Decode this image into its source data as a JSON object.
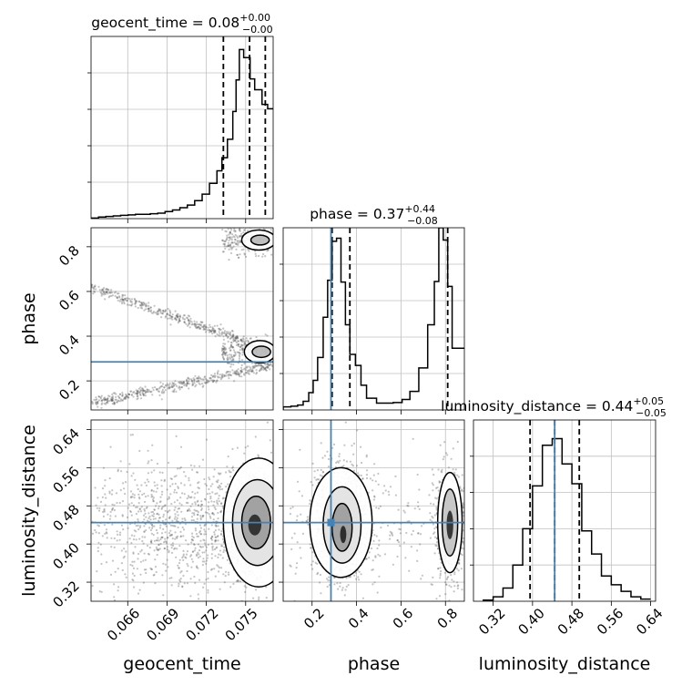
{
  "chart_data": {
    "type": "corner",
    "parameters": [
      "geocent_time",
      "phase",
      "luminosity_distance"
    ],
    "injection": {
      "phase": 0.285,
      "luminosity_distance": 0.445
    },
    "colors": {
      "truth": "#4682b4",
      "hist": "#000000",
      "grid": "#c0c0c0",
      "points": "#555555"
    },
    "diagonal": [
      {
        "parameter": "geocent_time",
        "title": "geocent_time = 0.08",
        "title_sup": "+0.00",
        "title_sub": "−0.00",
        "range": [
          0.0632,
          0.0771
        ],
        "bin_edges": [
          0.0632,
          0.06377,
          0.06433,
          0.0649,
          0.06546,
          0.06603,
          0.06659,
          0.06716,
          0.06772,
          0.06829,
          0.06885,
          0.06942,
          0.06998,
          0.07055,
          0.07111,
          0.07168,
          0.07224,
          0.07281,
          0.07319,
          0.07361,
          0.07402,
          0.07427,
          0.07452,
          0.07485,
          0.07534,
          0.07569,
          0.07625,
          0.07668,
          0.0771
        ],
        "counts": [
          1,
          3,
          4,
          5,
          6,
          7,
          8,
          8,
          9,
          10,
          13,
          16,
          20,
          25,
          33,
          45,
          65,
          88,
          112,
          146,
          197,
          255,
          311,
          296,
          257,
          237,
          210,
          202
        ],
        "ylim": [
          0,
          335
        ],
        "quantiles": [
          0.0733,
          0.0753,
          0.0765
        ],
        "xticks": [
          0.066,
          0.069,
          0.072,
          0.075
        ],
        "xticklabels": [
          "0.066",
          "0.069",
          "0.072",
          "0.075"
        ],
        "xlabel": "geocent_time"
      },
      {
        "parameter": "phase",
        "title": "phase = 0.37",
        "title_sup": "+0.44",
        "title_sub": "−0.08",
        "range": [
          0.07,
          0.885
        ],
        "bin_edges": [
          0.07,
          0.105,
          0.135,
          0.16,
          0.185,
          0.205,
          0.225,
          0.25,
          0.27,
          0.29,
          0.31,
          0.33,
          0.35,
          0.37,
          0.395,
          0.42,
          0.445,
          0.49,
          0.53,
          0.565,
          0.605,
          0.64,
          0.68,
          0.72,
          0.75,
          0.77,
          0.79,
          0.81,
          0.83,
          0.855,
          0.885
        ],
        "counts": [
          5,
          6,
          8,
          14,
          28,
          48,
          85,
          150,
          210,
          273,
          278,
          207,
          138,
          90,
          72,
          40,
          19,
          11,
          11,
          12,
          17,
          30,
          68,
          138,
          208,
          295,
          275,
          200,
          100,
          100
        ],
        "ylim": [
          0,
          295
        ],
        "quantiles": [
          0.29,
          0.37,
          0.81
        ],
        "xticks": [
          0.2,
          0.4,
          0.6,
          0.8
        ],
        "xticklabels": [
          "0.2",
          "0.4",
          "0.6",
          "0.8"
        ],
        "xlabel": "phase"
      },
      {
        "parameter": "luminosity_distance",
        "title": "luminosity_distance = 0.44",
        "title_sup": "+0.05",
        "title_sub": "−0.05",
        "range": [
          0.28,
          0.65
        ],
        "bin_edges": [
          0.3,
          0.32,
          0.34,
          0.36,
          0.38,
          0.4,
          0.42,
          0.44,
          0.46,
          0.48,
          0.5,
          0.52,
          0.54,
          0.56,
          0.58,
          0.6,
          0.62,
          0.64
        ],
        "counts": [
          1,
          4,
          12,
          33,
          66,
          105,
          142,
          148,
          125,
          107,
          64,
          43,
          23,
          15,
          9,
          4,
          2
        ],
        "ylim": [
          0,
          165
        ],
        "quantiles": [
          0.395,
          0.445,
          0.495
        ],
        "xticks": [
          0.32,
          0.4,
          0.48,
          0.56,
          0.64
        ],
        "xticklabels": [
          "0.32",
          "0.40",
          "0.48",
          "0.56",
          "0.64"
        ],
        "xlabel": "luminosity_distance"
      }
    ],
    "yaxes": [
      {
        "parameter": "phase",
        "ylabel": "phase",
        "range": [
          0.07,
          0.885
        ],
        "yticks": [
          0.2,
          0.4,
          0.6,
          0.8
        ],
        "yticklabels": [
          "0.2",
          "0.4",
          "0.6",
          "0.8"
        ]
      },
      {
        "parameter": "luminosity_distance",
        "ylabel": "luminosity_distance",
        "range": [
          0.28,
          0.66
        ],
        "yticks": [
          0.32,
          0.4,
          0.48,
          0.56,
          0.64
        ],
        "yticklabels": [
          "0.32",
          "0.40",
          "0.48",
          "0.56",
          "0.64"
        ]
      }
    ],
    "pair_structure": {
      "geocent_time_vs_phase": "V-shaped scatter of samples converging toward geocent_time ≈ 0.075 with dense modes near phase ≈ 0.33 and phase ≈ 0.83",
      "geocent_time_vs_luminosity_distance": "broad scatter with density concentrated at geocent_time ≈ 0.075, luminosity_distance ≈ 0.44",
      "phase_vs_luminosity_distance": "two modes at phase ≈ 0.33 and phase ≈ 0.82, luminosity_distance ≈ 0.44"
    },
    "grid": true
  }
}
